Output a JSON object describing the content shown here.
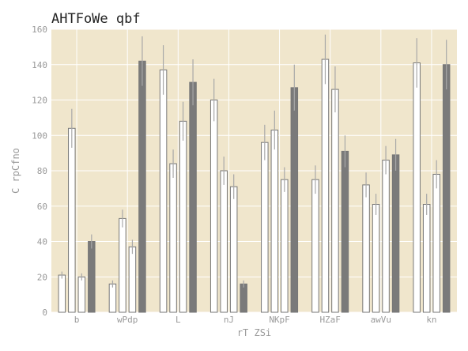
{
  "chart_data": {
    "type": "bar",
    "title": "AHTFoWe qbf",
    "xlabel": "rT ZSi",
    "ylabel": "C rpCfno",
    "ylim": [
      0,
      160
    ],
    "yticks": [
      0,
      20,
      40,
      60,
      80,
      100,
      120,
      140,
      160
    ],
    "categories": [
      "b",
      "wPdp",
      "L",
      "nJ",
      "NKpF",
      "HZaF",
      "awVu",
      "kn"
    ],
    "grid": true,
    "legend": "none",
    "series": [
      {
        "values": [
          21,
          16,
          137,
          120,
          96,
          75,
          72,
          141
        ],
        "errors": [
          2,
          2,
          14,
          12,
          10,
          8,
          7,
          14
        ],
        "color": "#ffffff"
      },
      {
        "values": [
          104,
          53,
          84,
          80,
          103,
          143,
          61,
          61
        ],
        "errors": [
          11,
          5,
          8,
          8,
          11,
          14,
          6,
          6
        ],
        "color": "#ffffff"
      },
      {
        "values": [
          20,
          37,
          108,
          71,
          75,
          126,
          86,
          78
        ],
        "errors": [
          2,
          4,
          11,
          7,
          7,
          13,
          8,
          8
        ],
        "color": "#ffffff"
      },
      {
        "values": [
          40,
          142,
          130,
          16,
          127,
          91,
          89,
          140
        ],
        "errors": [
          4,
          14,
          13,
          2,
          13,
          9,
          9,
          14
        ],
        "color": "#7a7a7a"
      }
    ],
    "colors": {
      "background": "#f0e6cc",
      "grid": "#ffffff",
      "bar_edge": "#777777",
      "errorbar": "#a8a8a8"
    }
  }
}
